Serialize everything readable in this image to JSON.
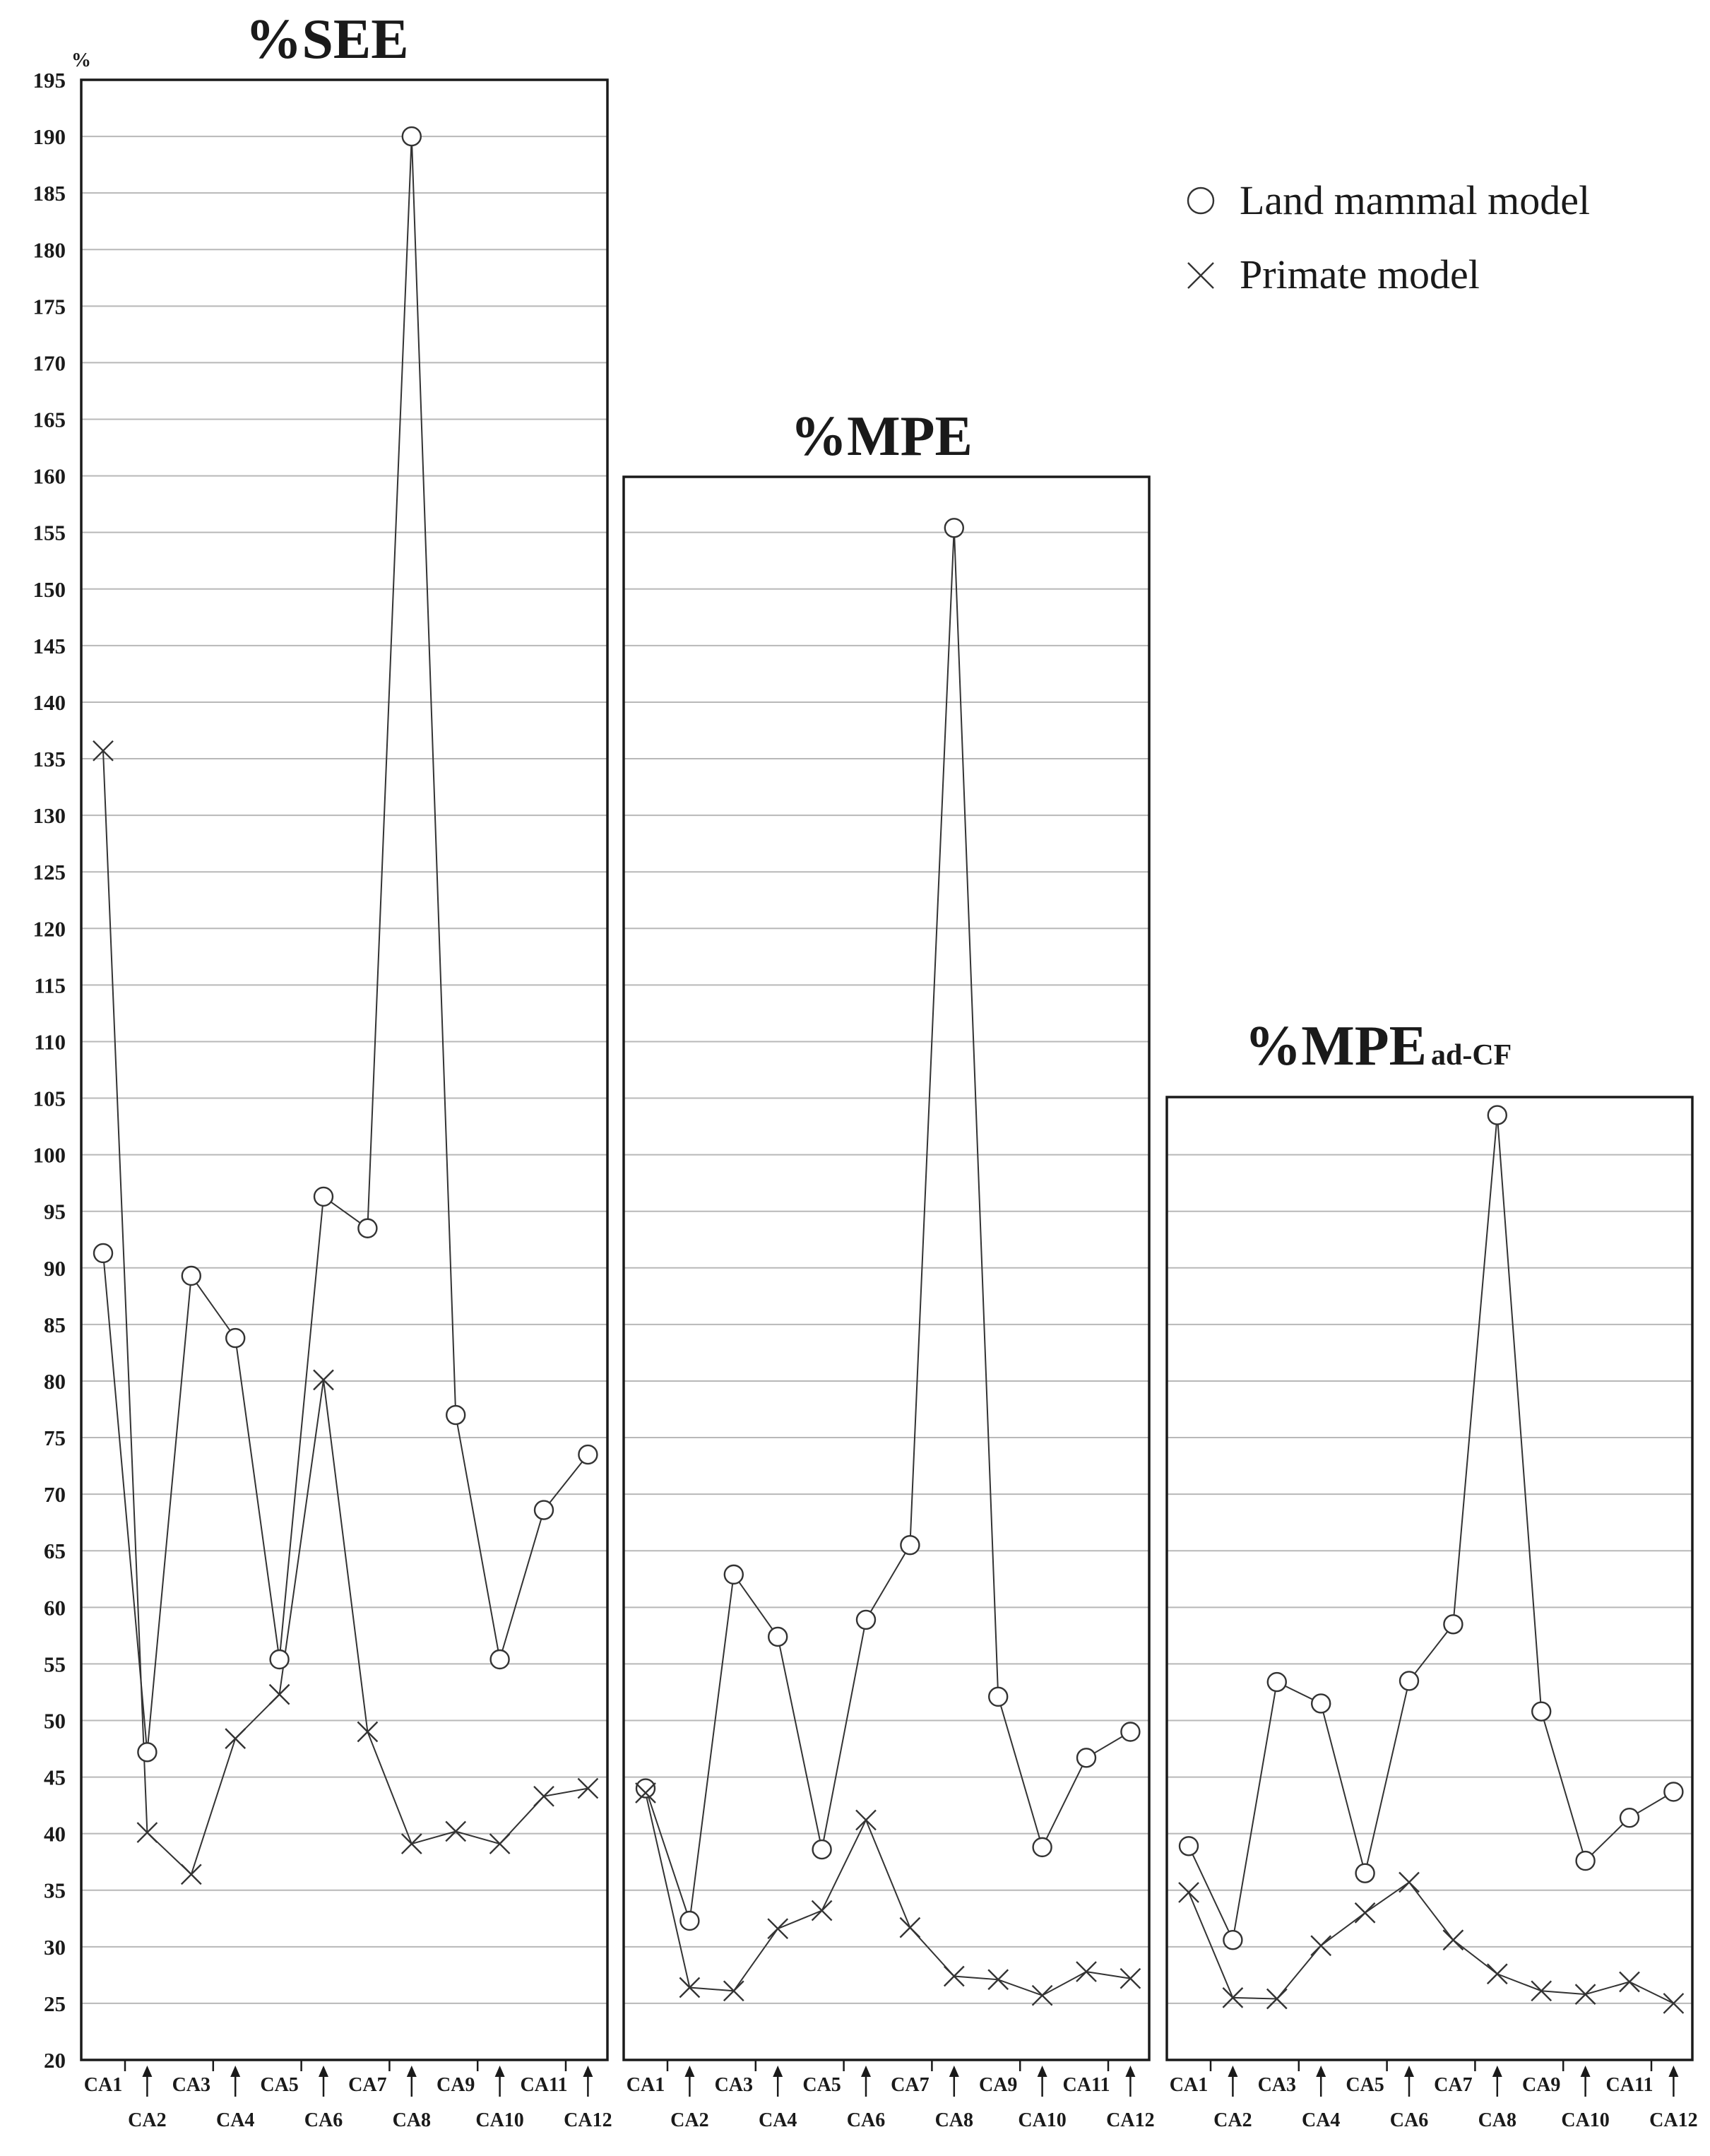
{
  "y_unit": "%",
  "y_axis": {
    "min": 20,
    "max": 195,
    "step": 5
  },
  "legend": [
    {
      "label": "Land mammal model",
      "marker": "circle"
    },
    {
      "label": "Primate model",
      "marker": "cross"
    }
  ],
  "chart_data": [
    {
      "type": "line",
      "title": "%SEE",
      "title_subscript": "",
      "categories": [
        "CA1",
        "CA2",
        "CA3",
        "CA4",
        "CA5",
        "CA6",
        "CA7",
        "CA8",
        "CA9",
        "CA10",
        "CA11",
        "CA12"
      ],
      "ylim": [
        20,
        195
      ],
      "grid": true,
      "legend_position": "top-right",
      "series": [
        {
          "name": "Land mammal model",
          "marker": "circle",
          "values": [
            91.3,
            47.2,
            89.3,
            83.8,
            55.4,
            96.3,
            93.5,
            190.0,
            77.0,
            55.4,
            68.6,
            73.5
          ]
        },
        {
          "name": "Primate model",
          "marker": "cross",
          "values": [
            135.7,
            40.1,
            36.4,
            48.4,
            52.3,
            80.1,
            49.0,
            39.1,
            40.2,
            39.1,
            43.3,
            44.0
          ]
        }
      ]
    },
    {
      "type": "line",
      "title": "%MPE",
      "title_subscript": "",
      "categories": [
        "CA1",
        "CA2",
        "CA3",
        "CA4",
        "CA5",
        "CA6",
        "CA7",
        "CA8",
        "CA9",
        "CA10",
        "CA11",
        "CA12"
      ],
      "ylim": [
        20,
        160
      ],
      "grid": true,
      "series": [
        {
          "name": "Land mammal model",
          "marker": "circle",
          "values": [
            44.0,
            32.3,
            62.9,
            57.4,
            38.6,
            58.9,
            65.5,
            155.4,
            52.1,
            38.8,
            46.7,
            49.0
          ]
        },
        {
          "name": "Primate model",
          "marker": "cross",
          "values": [
            43.6,
            26.4,
            26.1,
            31.6,
            33.2,
            41.2,
            31.7,
            27.4,
            27.1,
            25.7,
            27.8,
            27.2
          ]
        }
      ]
    },
    {
      "type": "line",
      "title": "%MPE",
      "title_subscript": "ad-CF",
      "categories": [
        "CA1",
        "CA2",
        "CA3",
        "CA4",
        "CA5",
        "CA6",
        "CA7",
        "CA8",
        "CA9",
        "CA10",
        "CA11",
        "CA12"
      ],
      "ylim": [
        20,
        105
      ],
      "grid": true,
      "series": [
        {
          "name": "Land mammal model",
          "marker": "circle",
          "values": [
            38.9,
            30.6,
            53.4,
            51.5,
            36.5,
            53.5,
            58.5,
            103.5,
            50.8,
            37.6,
            41.4,
            43.7
          ]
        },
        {
          "name": "Primate model",
          "marker": "cross",
          "values": [
            34.8,
            25.5,
            25.4,
            30.1,
            33.0,
            35.7,
            30.6,
            27.6,
            26.1,
            25.8,
            26.9,
            25.0
          ]
        }
      ]
    }
  ]
}
